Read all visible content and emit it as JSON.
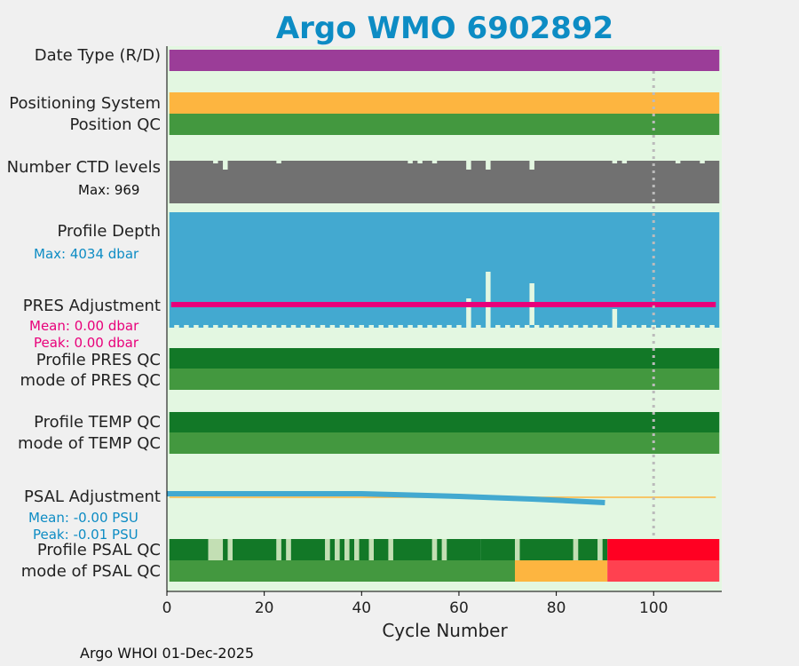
{
  "title": "Argo WMO 6902892",
  "footer": "Argo WHOI 01-Dec-2025",
  "colors": {
    "background": "#e3f7e1",
    "date_type": "#9b3d98",
    "positioning": "#fdb540",
    "qc_good": "#43983f",
    "qc_dark": "#127827",
    "qc_light": "#c3dfb4",
    "qc_bad": "#ff0022",
    "qc_bad_light": "#ff4150",
    "qc_orange": "#fdb540",
    "ctd": "#717171",
    "depth": "#43a9d0",
    "pres_adj": "#e8007a",
    "psal_adj": "#43a9d0",
    "psal_ref": "#fdb540"
  },
  "labels": {
    "date_type": "Date Type (R/D)",
    "positioning": "Positioning System",
    "position_qc": "Position QC",
    "ctd_levels": "Number CTD levels",
    "ctd_max": "Max: 969",
    "profile_depth": "Profile Depth",
    "depth_max": "Max: 4034 dbar",
    "pres_adj": "PRES Adjustment",
    "pres_mean": "Mean: 0.00 dbar",
    "pres_peak": "Peak: 0.00 dbar",
    "pres_qc": "Profile PRES QC",
    "pres_mode": "mode of PRES QC",
    "temp_qc": "Profile TEMP QC",
    "temp_mode": "mode of TEMP QC",
    "psal_adj": "PSAL Adjustment",
    "psal_mean": "Mean: -0.00 PSU",
    "psal_peak": "Peak: -0.01 PSU",
    "psal_qc": "Profile PSAL QC",
    "psal_mode": "mode of PSAL QC"
  },
  "chart_data": {
    "type": "bar",
    "xlabel": "Cycle Number",
    "xlim": [
      0,
      114
    ],
    "xticks": [
      0,
      20,
      40,
      60,
      80,
      100
    ],
    "vline_cycle": 100,
    "n_cycles": 113,
    "max_ctd_levels": 969,
    "max_depth_dbar": 4034,
    "ctd_dips": [
      12,
      62,
      66,
      75
    ],
    "ctd_small_dips": [
      10,
      23,
      50,
      52,
      55,
      92,
      94,
      105,
      110
    ],
    "depth_notches": [
      62,
      66,
      75,
      92
    ],
    "psal_qc_segments": [
      {
        "from": 0,
        "to": 8,
        "qc": "good"
      },
      {
        "from": 8,
        "to": 11,
        "qc": "light"
      },
      {
        "from": 11,
        "to": 12,
        "qc": "good"
      },
      {
        "from": 12,
        "to": 13,
        "qc": "light"
      },
      {
        "from": 13,
        "to": 22,
        "qc": "good"
      },
      {
        "from": 22,
        "to": 23,
        "qc": "light"
      },
      {
        "from": 23,
        "to": 24,
        "qc": "good"
      },
      {
        "from": 24,
        "to": 25,
        "qc": "light"
      },
      {
        "from": 25,
        "to": 32,
        "qc": "good"
      },
      {
        "from": 32,
        "to": 33,
        "qc": "light"
      },
      {
        "from": 33,
        "to": 34,
        "qc": "good"
      },
      {
        "from": 34,
        "to": 35,
        "qc": "light"
      },
      {
        "from": 35,
        "to": 36,
        "qc": "good"
      },
      {
        "from": 36,
        "to": 37,
        "qc": "light"
      },
      {
        "from": 37,
        "to": 38,
        "qc": "good"
      },
      {
        "from": 38,
        "to": 39,
        "qc": "light"
      },
      {
        "from": 39,
        "to": 41,
        "qc": "good"
      },
      {
        "from": 41,
        "to": 42,
        "qc": "light"
      },
      {
        "from": 42,
        "to": 45,
        "qc": "good"
      },
      {
        "from": 45,
        "to": 46,
        "qc": "light"
      },
      {
        "from": 46,
        "to": 54,
        "qc": "good"
      },
      {
        "from": 54,
        "to": 55,
        "qc": "light"
      },
      {
        "from": 55,
        "to": 56,
        "qc": "good"
      },
      {
        "from": 56,
        "to": 57,
        "qc": "light"
      },
      {
        "from": 57,
        "to": 64,
        "qc": "good"
      },
      {
        "from": 64,
        "to": 71,
        "qc": "good"
      },
      {
        "from": 71,
        "to": 72,
        "qc": "light"
      },
      {
        "from": 72,
        "to": 83,
        "qc": "good"
      },
      {
        "from": 83,
        "to": 84,
        "qc": "light"
      },
      {
        "from": 84,
        "to": 88,
        "qc": "good"
      },
      {
        "from": 88,
        "to": 89,
        "qc": "light"
      },
      {
        "from": 89,
        "to": 90,
        "qc": "good"
      },
      {
        "from": 90,
        "to": 113,
        "qc": "bad"
      }
    ],
    "psal_mode_segments": [
      {
        "from": 0,
        "to": 71,
        "qc": "good"
      },
      {
        "from": 71,
        "to": 90,
        "qc": "orange"
      },
      {
        "from": 90,
        "to": 113,
        "qc": "bad_light"
      }
    ],
    "psal_adjustment": [
      [
        0,
        0.0
      ],
      [
        40,
        0.0
      ],
      [
        60,
        -0.003
      ],
      [
        75,
        -0.006
      ],
      [
        90,
        -0.01
      ]
    ],
    "pres_adjustment_value": 0.0
  }
}
